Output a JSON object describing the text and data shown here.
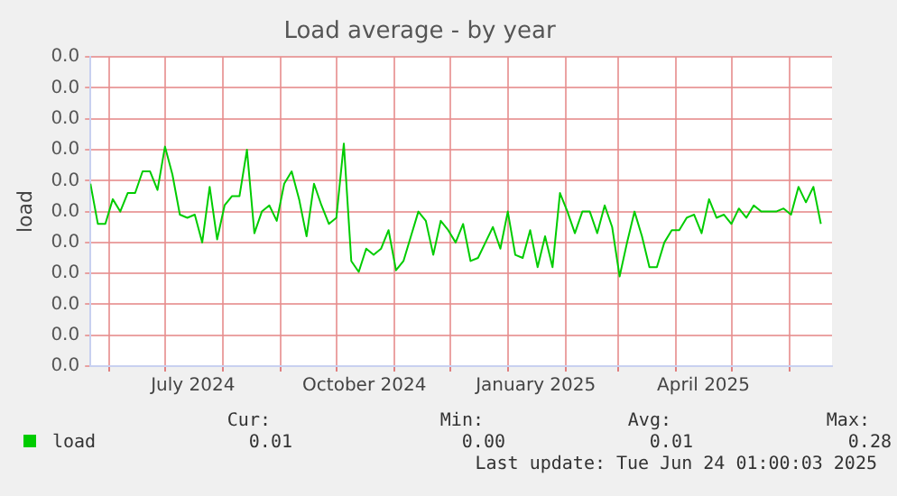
{
  "chart_data": {
    "type": "line",
    "title": "Load average - by year",
    "ylabel": "load",
    "x": [
      "2024-05-22",
      "2024-05-26",
      "2024-05-30",
      "2024-06-03",
      "2024-06-07",
      "2024-06-11",
      "2024-06-15",
      "2024-06-19",
      "2024-06-23",
      "2024-06-27",
      "2024-07-01",
      "2024-07-05",
      "2024-07-09",
      "2024-07-13",
      "2024-07-17",
      "2024-07-21",
      "2024-07-25",
      "2024-07-29",
      "2024-08-02",
      "2024-08-06",
      "2024-08-10",
      "2024-08-14",
      "2024-08-18",
      "2024-08-22",
      "2024-08-26",
      "2024-08-30",
      "2024-09-03",
      "2024-09-07",
      "2024-09-11",
      "2024-09-15",
      "2024-09-19",
      "2024-09-23",
      "2024-09-27",
      "2024-10-01",
      "2024-10-05",
      "2024-10-09",
      "2024-10-13",
      "2024-10-17",
      "2024-10-21",
      "2024-10-25",
      "2024-10-29",
      "2024-11-02",
      "2024-11-06",
      "2024-11-10",
      "2024-11-14",
      "2024-11-18",
      "2024-11-22",
      "2024-11-26",
      "2024-11-30",
      "2024-12-04",
      "2024-12-08",
      "2024-12-12",
      "2024-12-16",
      "2024-12-20",
      "2024-12-24",
      "2024-12-28",
      "2025-01-01",
      "2025-01-05",
      "2025-01-09",
      "2025-01-13",
      "2025-01-17",
      "2025-01-21",
      "2025-01-25",
      "2025-01-29",
      "2025-02-02",
      "2025-02-06",
      "2025-02-10",
      "2025-02-14",
      "2025-02-18",
      "2025-02-22",
      "2025-02-26",
      "2025-03-02",
      "2025-03-06",
      "2025-03-10",
      "2025-03-14",
      "2025-03-18",
      "2025-03-22",
      "2025-03-26",
      "2025-03-30",
      "2025-04-03",
      "2025-04-07",
      "2025-04-11",
      "2025-04-15",
      "2025-04-19",
      "2025-04-23",
      "2025-04-27",
      "2025-05-01",
      "2025-05-05",
      "2025-05-09",
      "2025-05-13",
      "2025-05-17",
      "2025-05-21",
      "2025-05-25",
      "2025-05-29",
      "2025-06-02",
      "2025-06-06",
      "2025-06-10",
      "2025-06-14",
      "2025-06-18"
    ],
    "series": [
      {
        "name": "load",
        "color": "#00cc00",
        "values": [
          0.0118,
          0.0092,
          0.0092,
          0.0108,
          0.01,
          0.0112,
          0.0112,
          0.0126,
          0.0126,
          0.0114,
          0.0142,
          0.0124,
          0.0098,
          0.0096,
          0.0098,
          0.008,
          0.0116,
          0.0082,
          0.0104,
          0.011,
          0.011,
          0.014,
          0.0086,
          0.01,
          0.0104,
          0.0094,
          0.0118,
          0.0126,
          0.0108,
          0.0084,
          0.0118,
          0.0104,
          0.0092,
          0.0096,
          0.0144,
          0.0068,
          0.0061,
          0.0076,
          0.0072,
          0.0076,
          0.0088,
          0.0062,
          0.0068,
          0.0084,
          0.01,
          0.0094,
          0.0072,
          0.0094,
          0.0088,
          0.008,
          0.0092,
          0.0068,
          0.007,
          0.008,
          0.009,
          0.0076,
          0.01,
          0.0072,
          0.007,
          0.0088,
          0.0064,
          0.0084,
          0.0064,
          0.0112,
          0.01,
          0.0086,
          0.01,
          0.01,
          0.0086,
          0.0104,
          0.009,
          0.0058,
          0.008,
          0.01,
          0.0084,
          0.0064,
          0.0064,
          0.008,
          0.0088,
          0.0088,
          0.0096,
          0.0098,
          0.0086,
          0.0108,
          0.0096,
          0.0098,
          0.0092,
          0.0102,
          0.0096,
          0.0104,
          0.01,
          0.01,
          0.01,
          0.0102,
          0.0098,
          0.0116,
          0.0106,
          0.0116,
          0.0092
        ]
      }
    ],
    "xlim": [
      "2024-05-22",
      "2025-06-24"
    ],
    "xticks": [
      {
        "value": "2024-06-01",
        "label": null
      },
      {
        "value": "2024-07-01",
        "label": null
      },
      {
        "value": "2024-07-16",
        "label": "July 2024"
      },
      {
        "value": "2024-08-01",
        "label": null
      },
      {
        "value": "2024-09-01",
        "label": null
      },
      {
        "value": "2024-10-01",
        "label": null
      },
      {
        "value": "2024-10-16",
        "label": "October 2024"
      },
      {
        "value": "2024-11-01",
        "label": null
      },
      {
        "value": "2024-12-01",
        "label": null
      },
      {
        "value": "2025-01-01",
        "label": null
      },
      {
        "value": "2025-01-16",
        "label": "January 2025"
      },
      {
        "value": "2025-02-01",
        "label": null
      },
      {
        "value": "2025-03-01",
        "label": null
      },
      {
        "value": "2025-04-01",
        "label": null
      },
      {
        "value": "2025-04-16",
        "label": "April 2025"
      },
      {
        "value": "2025-05-01",
        "label": null
      },
      {
        "value": "2025-06-01",
        "label": null
      }
    ],
    "ylim": [
      0,
      0.02
    ],
    "yticks": [
      {
        "value": 0,
        "label": "0.0"
      },
      {
        "value": 0.002,
        "label": "0.0"
      },
      {
        "value": 0.004,
        "label": "0.0"
      },
      {
        "value": 0.006,
        "label": "0.0"
      },
      {
        "value": 0.008,
        "label": "0.0"
      },
      {
        "value": 0.01,
        "label": "0.0"
      },
      {
        "value": 0.012,
        "label": "0.0"
      },
      {
        "value": 0.014,
        "label": "0.0"
      },
      {
        "value": 0.016,
        "label": "0.0"
      },
      {
        "value": 0.018,
        "label": "0.0"
      },
      {
        "value": 0.02,
        "label": "0.0"
      }
    ],
    "grid": true,
    "legend": "bottom left",
    "marker": "none",
    "line_style": "solid",
    "annotations": [
      "Cur:",
      "Min:",
      "Avg:",
      "Max:",
      "0.01",
      "0.00",
      "0.01",
      "0.28",
      "Last update: Tue Jun 24 01:00:03 2025"
    ]
  }
}
